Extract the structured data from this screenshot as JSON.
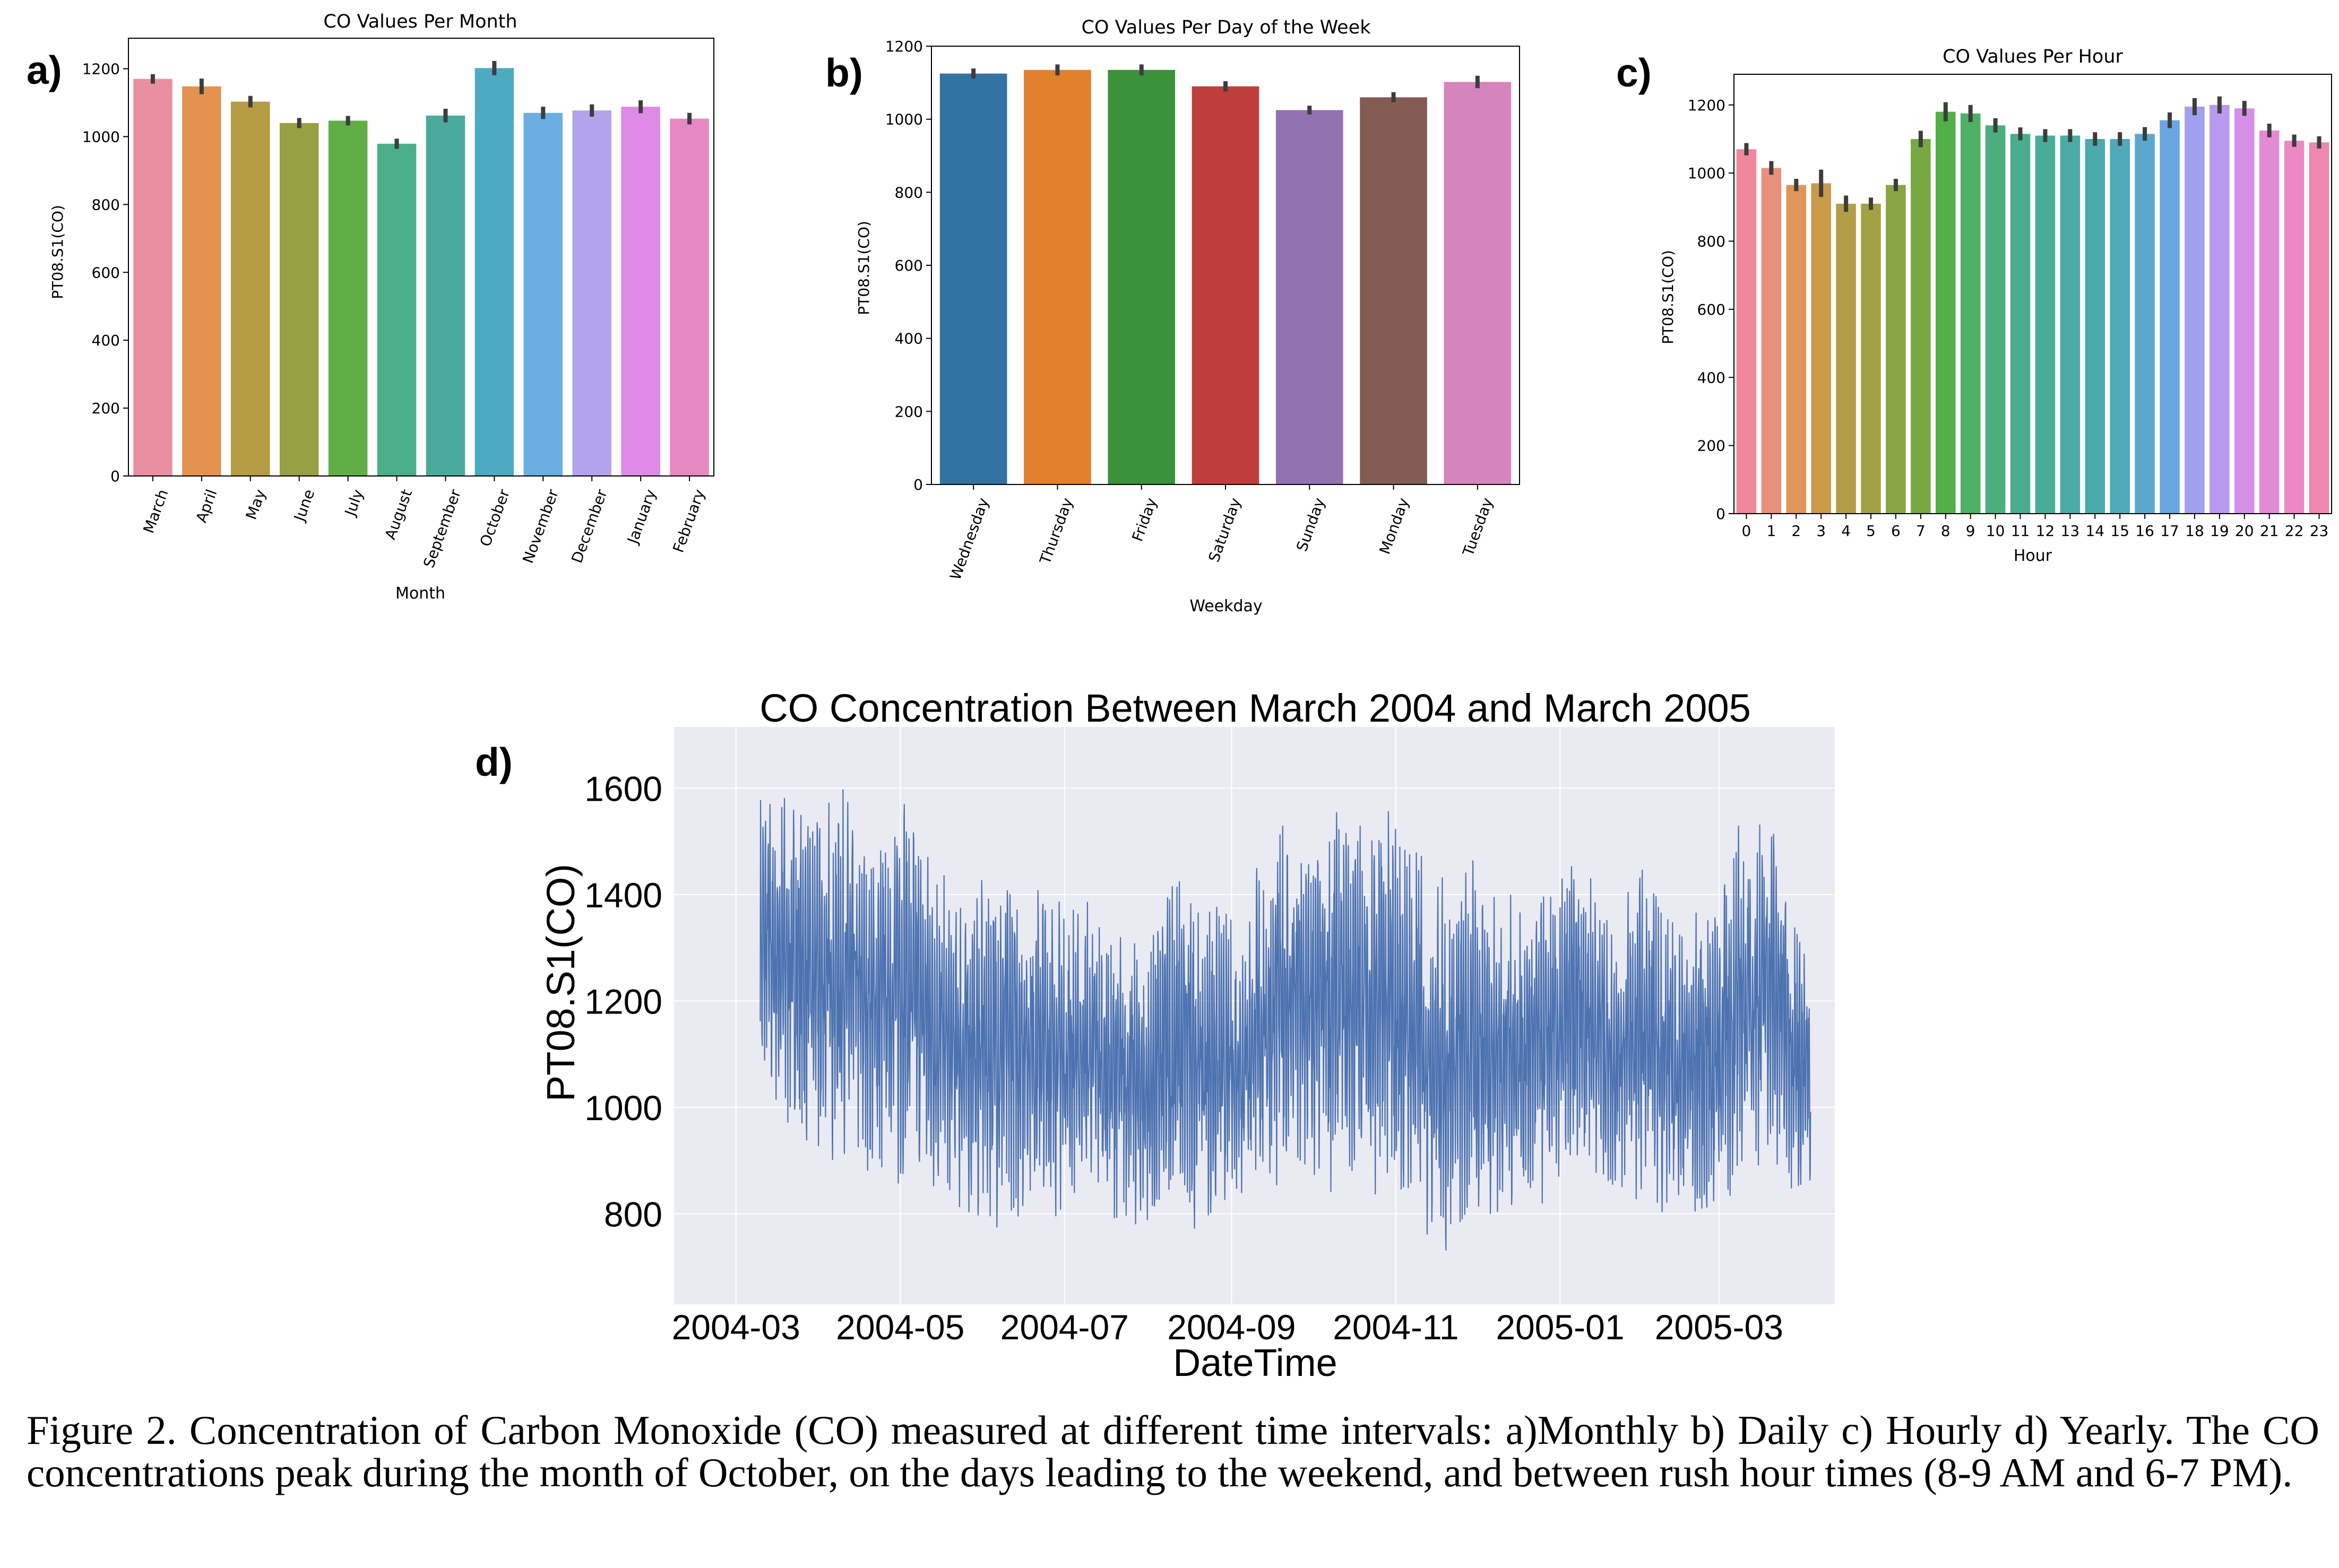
{
  "caption": "Figure 2. Concentration of Carbon Monoxide (CO) measured at different time intervals: a)Monthly b) Daily c) Hourly d) Yearly. The CO concentrations peak during the month of October, on the days leading to the weekend, and between rush hour times (8-9 AM and 6-7 PM).",
  "chart_data": [
    {
      "panel": "a)",
      "type": "bar",
      "title": "CO Values Per Month",
      "xlabel": "Month",
      "ylabel": "PT08.S1(CO)",
      "ylim": [
        0,
        1290
      ],
      "yticks": [
        0,
        200,
        400,
        600,
        800,
        1000,
        1200
      ],
      "categories": [
        "March",
        "April",
        "May",
        "June",
        "July",
        "August",
        "September",
        "October",
        "November",
        "December",
        "January",
        "February"
      ],
      "values": [
        1170,
        1148,
        1103,
        1040,
        1047,
        979,
        1062,
        1202,
        1070,
        1077,
        1088,
        1053
      ],
      "error": [
        14,
        23,
        17,
        15,
        14,
        15,
        20,
        21,
        18,
        18,
        19,
        17
      ],
      "colors": [
        "#ea8fa0",
        "#e3924f",
        "#b59b42",
        "#999f43",
        "#5fae46",
        "#4bb089",
        "#4aab9d",
        "#4dabc1",
        "#6aaee3",
        "#b2a4ec",
        "#de8ae6",
        "#e888c3"
      ],
      "grid": false
    },
    {
      "panel": "b)",
      "type": "bar",
      "title": "CO Values Per Day of the Week",
      "xlabel": "Weekday",
      "ylabel": "PT08.S1(CO)",
      "ylim": [
        0,
        1200
      ],
      "yticks": [
        0,
        200,
        400,
        600,
        800,
        1000,
        1200
      ],
      "categories": [
        "Wednesday",
        "Thursday",
        "Friday",
        "Saturday",
        "Sunday",
        "Monday",
        "Tuesday"
      ],
      "values": [
        1125,
        1135,
        1135,
        1090,
        1025,
        1060,
        1102
      ],
      "error": [
        14,
        15,
        15,
        14,
        12,
        14,
        17
      ],
      "colors": [
        "#3274a1",
        "#e1812c",
        "#3a923a",
        "#c03d3e",
        "#9372b2",
        "#845b53",
        "#d684bd"
      ],
      "grid": false
    },
    {
      "panel": "c)",
      "type": "bar",
      "title": "CO Values Per Hour",
      "xlabel": "Hour",
      "ylabel": "PT08.S1(CO)",
      "ylim": [
        0,
        1290
      ],
      "yticks": [
        0,
        200,
        400,
        600,
        800,
        1000,
        1200
      ],
      "categories": [
        "0",
        "1",
        "2",
        "3",
        "4",
        "5",
        "6",
        "7",
        "8",
        "9",
        "10",
        "11",
        "12",
        "13",
        "14",
        "15",
        "16",
        "17",
        "18",
        "19",
        "20",
        "21",
        "22",
        "23"
      ],
      "values": [
        1070,
        1015,
        965,
        970,
        910,
        910,
        965,
        1100,
        1180,
        1175,
        1140,
        1115,
        1110,
        1110,
        1100,
        1100,
        1115,
        1155,
        1195,
        1200,
        1190,
        1125,
        1095,
        1090
      ],
      "error": [
        18,
        20,
        18,
        40,
        24,
        18,
        18,
        24,
        28,
        25,
        21,
        19,
        19,
        19,
        20,
        20,
        20,
        23,
        25,
        25,
        22,
        20,
        18,
        18
      ],
      "colors": [
        "#f0879b",
        "#e98f7e",
        "#e19558",
        "#c99b48",
        "#b39e45",
        "#a3a143",
        "#8aa543",
        "#77a943",
        "#51b046",
        "#4db062",
        "#4aaf7e",
        "#49ae8e",
        "#48ad98",
        "#4aaca4",
        "#4aabad",
        "#4eaab9",
        "#5aa8ce",
        "#6aa7e0",
        "#a0a0ee",
        "#b89bee",
        "#d68fe8",
        "#e38ad6",
        "#ec88c4",
        "#ef88b0"
      ],
      "grid": false
    },
    {
      "panel": "d)",
      "type": "line",
      "title": "CO Concentration Between March 2004 and March 2005",
      "xlabel": "DateTime",
      "ylabel": "PT08.S1(CO)",
      "xlim": [
        "2004-02-07",
        "2005-04-13"
      ],
      "ylim": [
        630,
        1715
      ],
      "yticks": [
        800,
        1000,
        1200,
        1400,
        1600
      ],
      "xticks": [
        "2004-03",
        "2004-05",
        "2004-07",
        "2004-09",
        "2004-11",
        "2005-01",
        "2005-03"
      ],
      "x_range": [
        "2004-03-10",
        "2005-04-04"
      ],
      "line_color": "#4c72b0",
      "background": "#eaeaf2",
      "grid": true,
      "envelope_note": "",
      "series": [
        {
          "x": [
            "2004-03-10",
            "2004-03-20",
            "2004-04-01",
            "2004-04-10",
            "2004-04-20",
            "2004-05-01",
            "2004-05-10",
            "2004-05-20",
            "2004-06-01",
            "2004-06-10",
            "2004-06-20",
            "2004-07-01",
            "2004-07-10",
            "2004-07-20",
            "2004-08-01",
            "2004-08-10",
            "2004-08-20",
            "2004-09-01",
            "2004-09-10",
            "2004-09-20",
            "2004-10-01",
            "2004-10-10",
            "2004-10-20",
            "2004-11-01",
            "2004-11-10",
            "2004-11-20",
            "2004-12-01",
            "2004-12-10",
            "2004-12-20",
            "2005-01-01",
            "2005-01-10",
            "2005-01-20",
            "2005-02-01",
            "2005-02-10",
            "2005-02-20",
            "2005-03-01",
            "2005-03-10",
            "2005-03-20",
            "2005-04-04"
          ],
          "high": [
            1640,
            1610,
            1580,
            1600,
            1500,
            1650,
            1530,
            1410,
            1450,
            1480,
            1460,
            1400,
            1400,
            1340,
            1300,
            1480,
            1410,
            1360,
            1460,
            1560,
            1500,
            1560,
            1580,
            1560,
            1500,
            1440,
            1470,
            1400,
            1410,
            1430,
            1560,
            1360,
            1480,
            1380,
            1380,
            1470,
            1560,
            1600,
            1250
          ],
          "low": [
            980,
            940,
            880,
            900,
            860,
            830,
            820,
            800,
            770,
            760,
            780,
            790,
            800,
            780,
            760,
            750,
            760,
            780,
            810,
            840,
            850,
            830,
            820,
            800,
            760,
            700,
            780,
            790,
            800,
            810,
            830,
            830,
            800,
            790,
            770,
            760,
            830,
            880,
            820
          ]
        }
      ]
    }
  ]
}
